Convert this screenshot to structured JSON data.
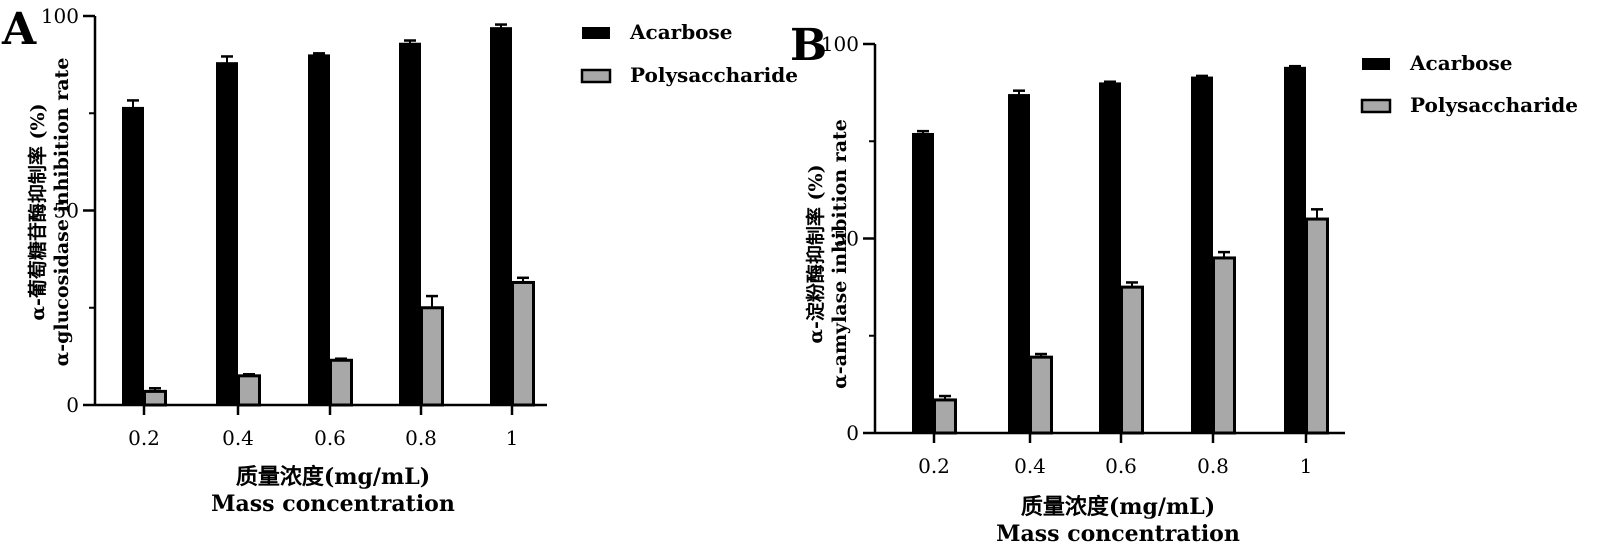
{
  "colors": {
    "acarbose_fill": "#000000",
    "polysaccharide_fill": "#a8a8a8",
    "bar_outline": "#000000",
    "axis": "#000000",
    "background": "#ffffff"
  },
  "chart_data": [
    {
      "panel": "A",
      "type": "bar",
      "categories": [
        "0.2",
        "0.4",
        "0.6",
        "0.8",
        "1"
      ],
      "series": [
        {
          "name": "Acarbose",
          "values": [
            76.5,
            88.0,
            90.0,
            93.0,
            97.0
          ],
          "errors": [
            1.8,
            1.6,
            0.4,
            0.7,
            0.8
          ]
        },
        {
          "name": "Polysaccharide",
          "values": [
            3.5,
            7.5,
            11.5,
            25.0,
            31.5
          ],
          "errors": [
            0.8,
            0.4,
            0.4,
            3.0,
            1.2
          ]
        }
      ],
      "ylim": [
        0,
        100
      ],
      "yticks": [
        "0",
        "50",
        "100"
      ],
      "ylabel_cn": "α-葡萄糖苷酶抑制率 (%)",
      "ylabel_en": "α-glucosidase inhibition rate",
      "xlabel_cn": "质量浓度(mg/mL)",
      "xlabel_en": "Mass concentration",
      "legend": "top-right"
    },
    {
      "panel": "B",
      "type": "bar",
      "categories": [
        "0.2",
        "0.4",
        "0.6",
        "0.8",
        "1"
      ],
      "series": [
        {
          "name": "Acarbose",
          "values": [
            77.0,
            87.0,
            90.0,
            91.5,
            94.0
          ],
          "errors": [
            0.6,
            1.0,
            0.3,
            0.3,
            0.3
          ]
        },
        {
          "name": "Polysaccharide",
          "values": [
            8.5,
            19.5,
            37.5,
            45.0,
            55.0
          ],
          "errors": [
            1.0,
            0.8,
            1.2,
            1.5,
            2.5
          ]
        }
      ],
      "ylim": [
        0,
        100
      ],
      "yticks": [
        "0",
        "50",
        "100"
      ],
      "ylabel_cn": "α-淀粉酶抑制率 (%)",
      "ylabel_en": "α-amylase inhibition rate",
      "xlabel_cn": "质量浓度(mg/mL)",
      "xlabel_en": "Mass concentration",
      "legend": "top-right"
    }
  ]
}
